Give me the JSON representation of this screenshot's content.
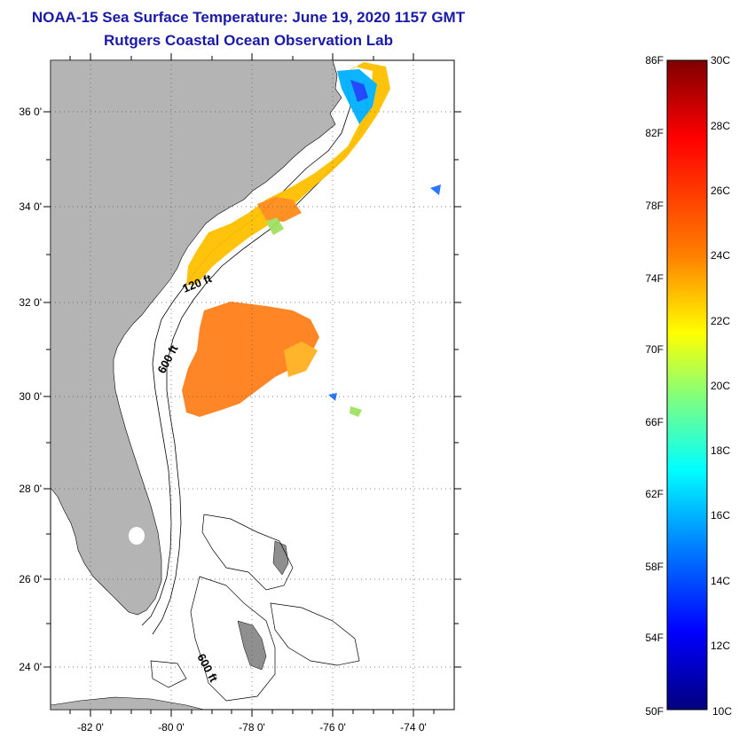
{
  "title": {
    "line1": "NOAA-15 Sea Surface Temperature:  June 19, 2020 1157 GMT",
    "line2": "Rutgers Coastal Ocean Observation Lab"
  },
  "map": {
    "lon_labels": [
      "-82 0'",
      "-80 0'",
      "-78 0'",
      "-76 0'",
      "-74 0'"
    ],
    "lat_labels": [
      "36 0'",
      "34 0'",
      "32 0'",
      "30 0'",
      "28 0'",
      "26 0'",
      "24 0'"
    ],
    "contour_labels": [
      "120 ft",
      "600 ft",
      "600 ft"
    ],
    "land_color": "#b4b4b4",
    "frame_color": "#000000"
  },
  "colorbar": {
    "fahrenheit": [
      "86F",
      "82F",
      "78F",
      "74F",
      "70F",
      "66F",
      "62F",
      "58F",
      "54F",
      "50F"
    ],
    "celsius": [
      "30C",
      "28C",
      "26C",
      "24C",
      "22C",
      "20C",
      "18C",
      "16C",
      "14C",
      "12C",
      "10C"
    ],
    "gradient_colors": [
      "#7f0000",
      "#ff0000",
      "#ff7f00",
      "#ffff00",
      "#7fff7f",
      "#00ffff",
      "#007fff",
      "#0000ff",
      "#00007f"
    ]
  }
}
